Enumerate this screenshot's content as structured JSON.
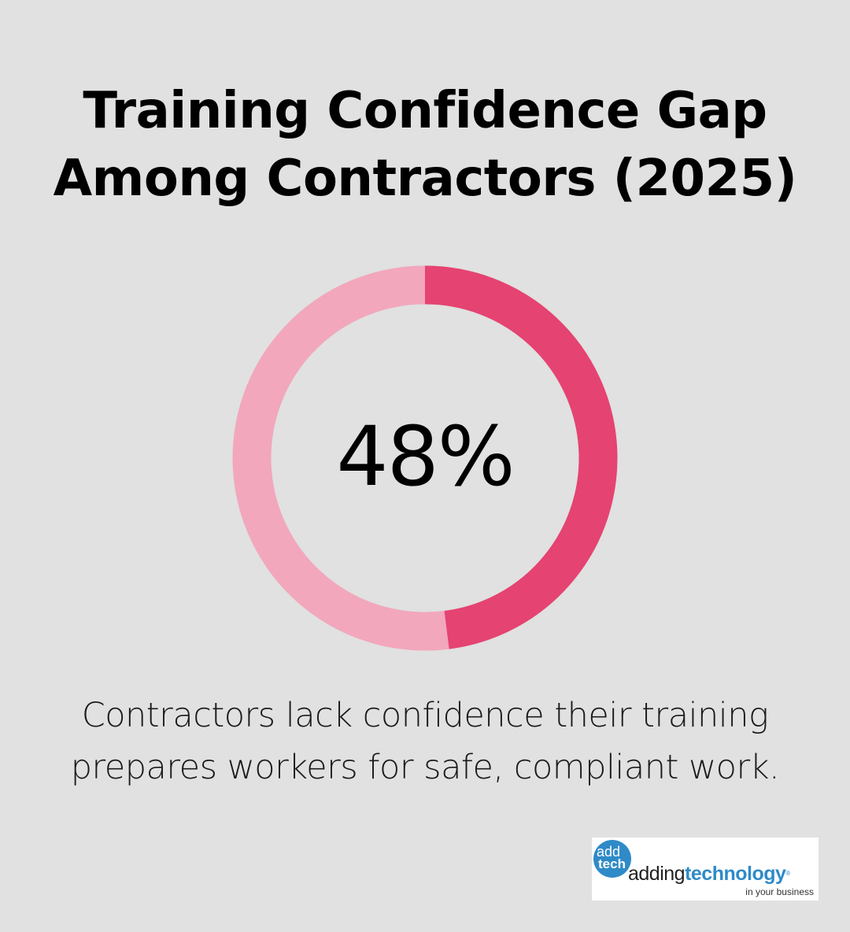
{
  "title": {
    "line1": "Training Confidence Gap",
    "line2": "Among Contractors (2025)"
  },
  "chart_data": {
    "type": "pie",
    "variant": "donut",
    "value_label": "48%",
    "values": [
      48,
      52
    ],
    "colors": [
      "#e54372",
      "#f2a7bd"
    ]
  },
  "caption": {
    "line1": "Contractors lack confidence their training",
    "line2": "prepares workers for safe, compliant work."
  },
  "logo": {
    "badge_top": "add",
    "badge_bottom": "tech",
    "word_part1": "adding",
    "word_part2": "technology",
    "registered": "®",
    "tagline": "in your business",
    "accent_color": "#2f8ac8"
  }
}
